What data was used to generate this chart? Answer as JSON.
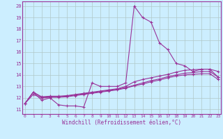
{
  "xlabel": "Windchill (Refroidissement éolien,°C)",
  "bg_color": "#cceeff",
  "grid_color": "#b0c8c8",
  "line_color": "#993399",
  "x_ticks": [
    0,
    1,
    2,
    3,
    4,
    5,
    6,
    7,
    8,
    9,
    10,
    11,
    12,
    13,
    14,
    15,
    16,
    17,
    18,
    19,
    20,
    21,
    22,
    23
  ],
  "y_ticks": [
    11,
    12,
    13,
    14,
    15,
    16,
    17,
    18,
    19,
    20
  ],
  "xlim": [
    -0.3,
    23.3
  ],
  "ylim": [
    10.6,
    20.4
  ],
  "line1_x": [
    0,
    1,
    2,
    3,
    4,
    5,
    6,
    7,
    8,
    9,
    10,
    11,
    12,
    13,
    14,
    15,
    16,
    17,
    18,
    19,
    20,
    21,
    22,
    23
  ],
  "line1_y": [
    11.5,
    12.5,
    11.8,
    12.0,
    11.4,
    11.3,
    11.3,
    11.2,
    13.3,
    13.0,
    13.0,
    13.0,
    13.3,
    20.0,
    19.0,
    18.6,
    16.8,
    16.2,
    15.0,
    14.8,
    14.3,
    14.5,
    14.5,
    13.8
  ],
  "line2_x": [
    0,
    1,
    2,
    3,
    4,
    5,
    6,
    7,
    8,
    9,
    10,
    11,
    12,
    13,
    14,
    15,
    16,
    17,
    18,
    19,
    20,
    21,
    22,
    23
  ],
  "line2_y": [
    11.5,
    12.5,
    12.1,
    12.15,
    12.15,
    12.2,
    12.3,
    12.4,
    12.5,
    12.6,
    12.7,
    12.8,
    13.0,
    13.4,
    13.6,
    13.75,
    13.9,
    14.05,
    14.25,
    14.4,
    14.45,
    14.5,
    14.5,
    14.3
  ],
  "line3_x": [
    0,
    1,
    2,
    3,
    4,
    5,
    6,
    7,
    8,
    9,
    10,
    11,
    12,
    13,
    14,
    15,
    16,
    17,
    18,
    19,
    20,
    21,
    22,
    23
  ],
  "line3_y": [
    11.5,
    12.5,
    12.05,
    12.1,
    12.1,
    12.15,
    12.25,
    12.35,
    12.45,
    12.55,
    12.65,
    12.75,
    12.9,
    13.1,
    13.3,
    13.5,
    13.65,
    13.85,
    14.0,
    14.15,
    14.2,
    14.3,
    14.3,
    13.8
  ],
  "line4_x": [
    0,
    1,
    2,
    3,
    4,
    5,
    6,
    7,
    8,
    9,
    10,
    11,
    12,
    13,
    14,
    15,
    16,
    17,
    18,
    19,
    20,
    21,
    22,
    23
  ],
  "line4_y": [
    11.5,
    12.3,
    12.0,
    12.05,
    12.05,
    12.1,
    12.2,
    12.3,
    12.4,
    12.5,
    12.6,
    12.7,
    12.85,
    13.05,
    13.2,
    13.4,
    13.55,
    13.75,
    13.9,
    14.0,
    14.05,
    14.1,
    14.1,
    13.6
  ]
}
